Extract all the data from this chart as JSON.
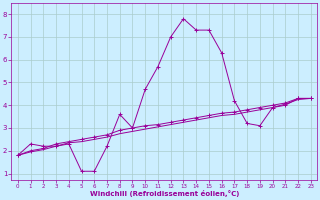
{
  "xlabel": "Windchill (Refroidissement éolien,°C)",
  "bg_color": "#cceeff",
  "line_color": "#990099",
  "grid_color": "#aacccc",
  "xlim": [
    -0.5,
    23.5
  ],
  "ylim": [
    0.7,
    8.5
  ],
  "xticks": [
    0,
    1,
    2,
    3,
    4,
    5,
    6,
    7,
    8,
    9,
    10,
    11,
    12,
    13,
    14,
    15,
    16,
    17,
    18,
    19,
    20,
    21,
    22,
    23
  ],
  "yticks": [
    1,
    2,
    3,
    4,
    5,
    6,
    7,
    8
  ],
  "line1_x": [
    0,
    1,
    2,
    3,
    4,
    5,
    6,
    7,
    8,
    9,
    10,
    11,
    12,
    13,
    14,
    15,
    16,
    17,
    18,
    19,
    20,
    21,
    22,
    23
  ],
  "line1_y": [
    1.8,
    2.3,
    2.2,
    2.2,
    2.3,
    1.1,
    1.1,
    2.2,
    3.6,
    3.0,
    4.7,
    5.7,
    7.0,
    7.8,
    7.3,
    7.3,
    6.3,
    4.2,
    3.2,
    3.1,
    3.9,
    4.0,
    4.3,
    4.3
  ],
  "line2_x": [
    0,
    1,
    2,
    3,
    4,
    5,
    6,
    7,
    8,
    9,
    10,
    11,
    12,
    13,
    14,
    15,
    16,
    17,
    18,
    19,
    20,
    21,
    22,
    23
  ],
  "line2_y": [
    1.8,
    2.0,
    2.1,
    2.3,
    2.4,
    2.5,
    2.6,
    2.7,
    2.9,
    3.0,
    3.1,
    3.15,
    3.25,
    3.35,
    3.45,
    3.55,
    3.65,
    3.7,
    3.8,
    3.9,
    4.0,
    4.1,
    4.3,
    4.3
  ],
  "line3_x": [
    0,
    1,
    2,
    3,
    4,
    5,
    6,
    7,
    8,
    9,
    10,
    11,
    12,
    13,
    14,
    15,
    16,
    17,
    18,
    19,
    20,
    21,
    22,
    23
  ],
  "line3_y": [
    1.8,
    1.95,
    2.05,
    2.2,
    2.35,
    2.4,
    2.5,
    2.6,
    2.75,
    2.85,
    2.95,
    3.05,
    3.15,
    3.25,
    3.35,
    3.45,
    3.55,
    3.6,
    3.7,
    3.8,
    3.9,
    4.05,
    4.25,
    4.3
  ]
}
